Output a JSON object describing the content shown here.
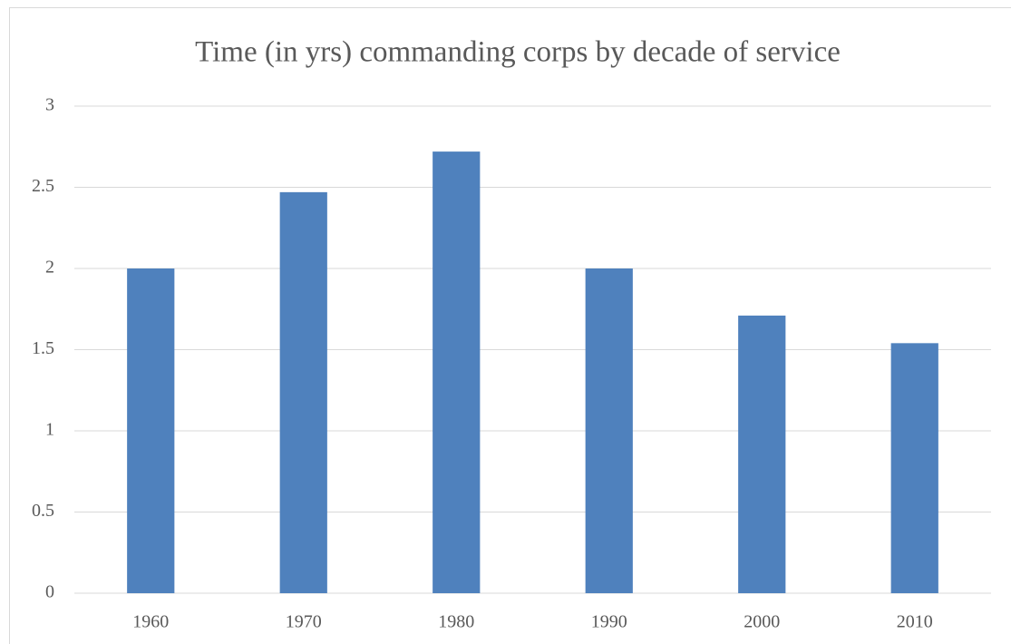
{
  "chart_data": {
    "type": "bar",
    "title": "Time (in yrs) commanding corps by decade of service",
    "categories": [
      "1960",
      "1970",
      "1980",
      "1990",
      "2000",
      "2010"
    ],
    "values": [
      2,
      2.47,
      2.72,
      2,
      1.71,
      1.54
    ],
    "color": "#4f81bd",
    "ylim": [
      0,
      3
    ],
    "yticks": [
      0,
      0.5,
      1,
      1.5,
      2,
      2.5,
      3
    ],
    "grid": true
  }
}
